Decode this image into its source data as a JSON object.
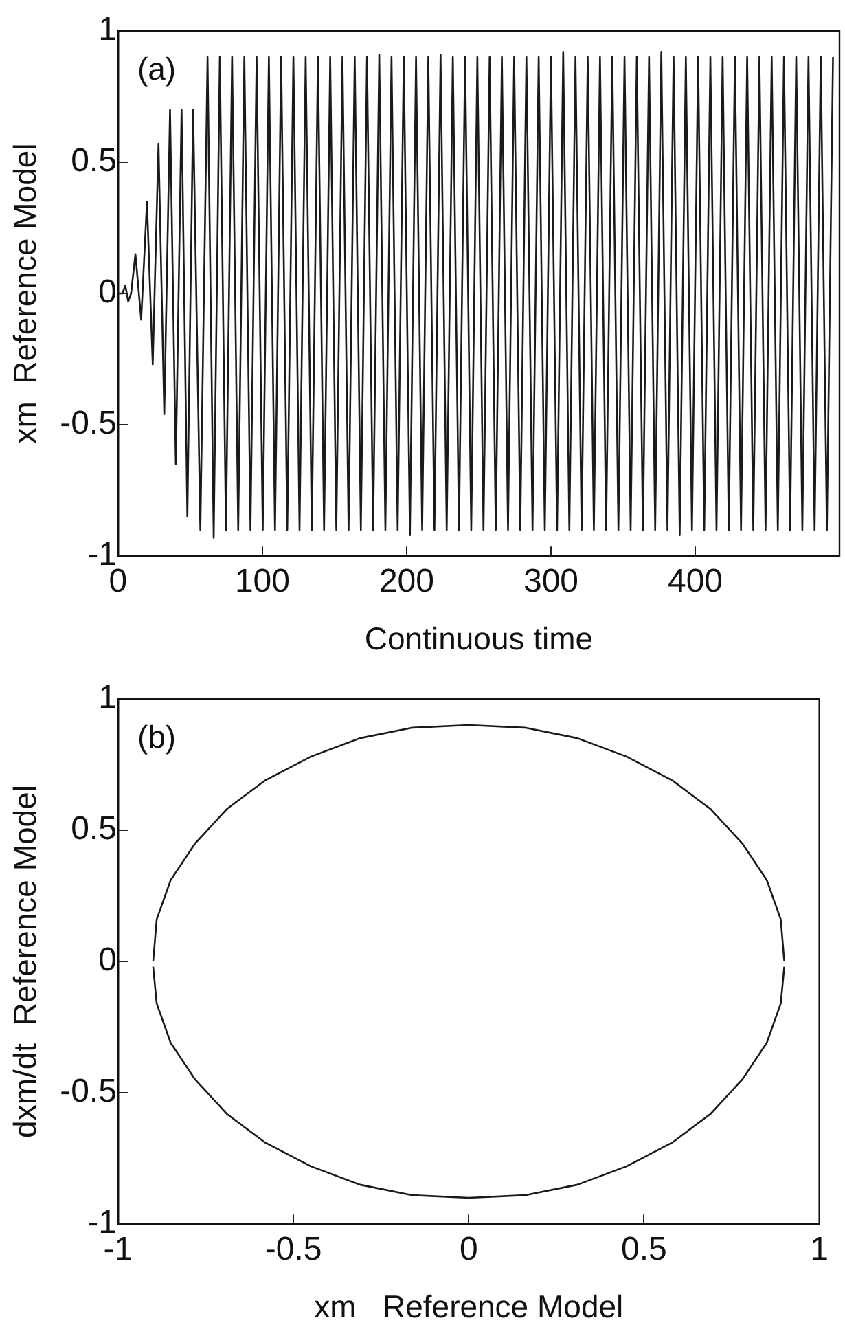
{
  "chart_data": [
    {
      "type": "line",
      "xlabel": "Continuous time",
      "ylabel": "xm  Reference Model",
      "annotations": [
        "(a)"
      ],
      "xlim": [
        0,
        500
      ],
      "xticks": [
        0,
        100,
        200,
        300,
        400
      ],
      "ylim": [
        -1,
        1
      ],
      "yticks": [
        -1,
        -0.5,
        0,
        0.5,
        1
      ],
      "grid": false,
      "legend": false,
      "marker": "none",
      "line_style": "solid",
      "series": [
        {
          "color": "#1a1a1a",
          "x": [
            0,
            3,
            5,
            7,
            9,
            12,
            16,
            20,
            24,
            28,
            32,
            36,
            40,
            44,
            48,
            52,
            57,
            62,
            66.25,
            70.5,
            74.75,
            79,
            83.25,
            87.5,
            91.75,
            96,
            100.25,
            104.5,
            108.75,
            113,
            117.25,
            121.5,
            125.75,
            130,
            134.25,
            138.5,
            142.75,
            147,
            151.25,
            155.5,
            159.75,
            164,
            168.25,
            172.5,
            176.75,
            181,
            185.25,
            189.5,
            193.75,
            198,
            202.25,
            206.5,
            210.75,
            215,
            219.25,
            223.5,
            227.75,
            232,
            236.25,
            240.5,
            244.75,
            249,
            253.25,
            257.5,
            261.75,
            266,
            270.25,
            274.5,
            278.75,
            283,
            287.25,
            291.5,
            295.75,
            300,
            304.25,
            308.5,
            312.75,
            317,
            321.25,
            325.5,
            329.75,
            334,
            338.25,
            342.5,
            346.75,
            351,
            355.25,
            359.5,
            363.75,
            368,
            372.25,
            376.5,
            380.75,
            385,
            389.25,
            393.5,
            397.75,
            402,
            406.25,
            410.5,
            414.75,
            419,
            423.25,
            427.5,
            431.75,
            436,
            440.25,
            444.5,
            448.75,
            453,
            457.25,
            461.5,
            465.75,
            470,
            474.25,
            478.5,
            482.75,
            487,
            491.25,
            495.5
          ],
          "values": [
            0,
            0,
            0.03,
            -0.03,
            0,
            0.15,
            -0.1,
            0.35,
            -0.27,
            0.57,
            -0.46,
            0.7,
            -0.65,
            0.7,
            -0.85,
            0.7,
            -0.9,
            0.9,
            -0.93,
            0.9,
            -0.9,
            0.9,
            -0.9,
            0.9,
            -0.9,
            0.9,
            -0.9,
            0.9,
            -0.9,
            0.9,
            -0.9,
            0.9,
            -0.9,
            0.9,
            -0.9,
            0.9,
            -0.9,
            0.9,
            -0.9,
            0.9,
            -0.9,
            0.9,
            -0.9,
            0.9,
            -0.9,
            0.91,
            -0.9,
            0.9,
            -0.9,
            0.9,
            -0.92,
            0.9,
            -0.9,
            0.9,
            -0.9,
            0.91,
            -0.9,
            0.9,
            -0.9,
            0.9,
            -0.9,
            0.9,
            -0.9,
            0.9,
            -0.9,
            0.9,
            -0.9,
            0.9,
            -0.9,
            0.9,
            -0.9,
            0.9,
            -0.9,
            0.9,
            -0.9,
            0.92,
            -0.9,
            0.9,
            -0.9,
            0.9,
            -0.9,
            0.9,
            -0.9,
            0.9,
            -0.9,
            0.9,
            -0.9,
            0.9,
            -0.9,
            0.9,
            -0.9,
            0.92,
            -0.9,
            0.9,
            -0.92,
            0.9,
            -0.9,
            0.9,
            -0.9,
            0.9,
            -0.9,
            0.9,
            -0.9,
            0.9,
            -0.9,
            0.9,
            -0.9,
            0.9,
            -0.9,
            0.9,
            -0.9,
            0.9,
            -0.9,
            0.9,
            -0.9,
            0.9,
            -0.9,
            0.9,
            -0.9,
            0.9
          ]
        }
      ]
    },
    {
      "type": "line",
      "xlabel": "xm   Reference Model",
      "ylabel": "dxm/dt  Reference Model",
      "annotations": [
        "(b)"
      ],
      "xlim": [
        -1,
        1
      ],
      "xticks": [
        -1,
        -0.5,
        0,
        0.5,
        1
      ],
      "ylim": [
        -1,
        1
      ],
      "yticks": [
        -1,
        -0.5,
        0,
        0.5,
        1
      ],
      "grid": false,
      "legend": false,
      "marker": "none",
      "line_style": "solid",
      "series": [
        {
          "color": "#1a1a1a",
          "x": [
            -0.9,
            -0.89,
            -0.85,
            -0.78,
            -0.69,
            -0.58,
            -0.45,
            -0.31,
            -0.16,
            0,
            0.16,
            0.31,
            0.45,
            0.58,
            0.69,
            0.78,
            0.85,
            0.89,
            0.9
          ],
          "values": [
            0,
            0.16,
            0.31,
            0.45,
            0.58,
            0.69,
            0.78,
            0.85,
            0.89,
            0.9,
            0.89,
            0.85,
            0.78,
            0.69,
            0.58,
            0.45,
            0.31,
            0.16,
            0
          ]
        },
        {
          "color": "#1a1a1a",
          "x": [
            -0.9,
            -0.89,
            -0.85,
            -0.78,
            -0.69,
            -0.58,
            -0.45,
            -0.31,
            -0.16,
            0,
            0.16,
            0.31,
            0.45,
            0.58,
            0.69,
            0.78,
            0.85,
            0.89,
            0.9
          ],
          "values": [
            -0.02,
            -0.16,
            -0.31,
            -0.45,
            -0.58,
            -0.69,
            -0.78,
            -0.85,
            -0.89,
            -0.9,
            -0.89,
            -0.85,
            -0.78,
            -0.69,
            -0.58,
            -0.45,
            -0.31,
            -0.16,
            -0.02
          ]
        }
      ]
    }
  ]
}
